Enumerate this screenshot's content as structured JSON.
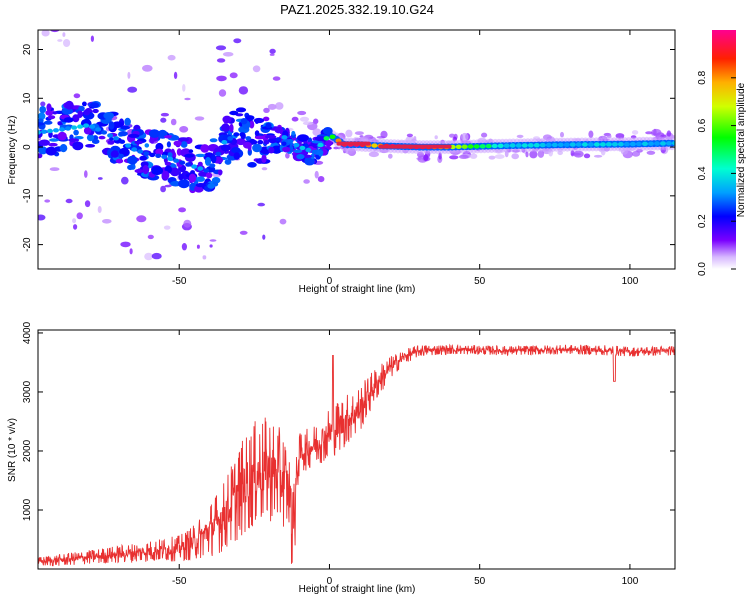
{
  "title": "PAZ1.2025.332.19.10.G24",
  "colors": {
    "snr_line": "#e83030",
    "spectral_ridge": "#e0204a",
    "background": "#ffffff"
  },
  "chart_data": [
    {
      "type": "heatmap",
      "name": "spectrogram",
      "xlabel": "Height of straight line (km)",
      "ylabel": "Frequency (Hz)",
      "xlim": [
        -97,
        115
      ],
      "ylim": [
        -25,
        24
      ],
      "xticks": [
        -50,
        0,
        50,
        100
      ],
      "yticks": [
        -20,
        -10,
        0,
        10,
        20
      ],
      "colorbar": {
        "label": "Normalized spectral amplitude",
        "range": [
          0.0,
          1.0
        ],
        "ticks": [
          "0.0",
          "0.2",
          "0.4",
          "0.6",
          "0.8"
        ],
        "colormap": "rainbow"
      },
      "ridge": {
        "description": "dominant frequency vs height",
        "x": [
          -97,
          -90,
          -85,
          -80,
          -75,
          -70,
          -65,
          -60,
          -55,
          -50,
          -45,
          -40,
          -35,
          -30,
          -25,
          -20,
          -15,
          -10,
          -5,
          0,
          5,
          10,
          15,
          20,
          30,
          40,
          60,
          80,
          100,
          115
        ],
        "y": [
          3,
          3.5,
          4,
          4.5,
          3,
          1.5,
          -0.5,
          -1.5,
          -2,
          -3,
          -4,
          -5,
          1,
          3,
          1,
          1,
          2,
          0,
          -1,
          2.5,
          0.5,
          0.5,
          0.3,
          0.2,
          0,
          0,
          0.3,
          0.5,
          0.6,
          0.8
        ],
        "amplitude": [
          0.35,
          0.3,
          0.35,
          0.3,
          0.3,
          0.25,
          0.3,
          0.25,
          0.3,
          0.25,
          0.3,
          0.25,
          0.3,
          0.25,
          0.25,
          0.2,
          0.3,
          0.35,
          0.3,
          0.5,
          0.95,
          0.95,
          0.7,
          0.95,
          0.95,
          0.7,
          0.35,
          0.35,
          0.35,
          0.35
        ]
      }
    },
    {
      "type": "line",
      "name": "snr",
      "xlabel": "Height of straight line (km)",
      "ylabel": "SNR (10 * v/v)",
      "xlim": [
        -97,
        115
      ],
      "ylim": [
        0,
        4050
      ],
      "xticks": [
        -50,
        0,
        50,
        100
      ],
      "yticks": [
        1000,
        2000,
        3000,
        4000
      ],
      "series": [
        {
          "name": "SNR",
          "x": [
            -97,
            -90,
            -80,
            -70,
            -60,
            -50,
            -45,
            -40,
            -35,
            -30,
            -25,
            -20,
            -15,
            -12,
            -11,
            -10,
            -5,
            0,
            5,
            10,
            15,
            20,
            25,
            30,
            40,
            60,
            80,
            95,
            100,
            115
          ],
          "y": [
            120,
            150,
            200,
            250,
            300,
            350,
            450,
            650,
            900,
            1300,
            1600,
            1700,
            1500,
            1100,
            1500,
            1950,
            2100,
            2300,
            2500,
            2700,
            3100,
            3400,
            3600,
            3700,
            3720,
            3700,
            3720,
            3700,
            3680,
            3700
          ],
          "spread": [
            80,
            100,
            120,
            150,
            180,
            220,
            300,
            450,
            600,
            800,
            900,
            900,
            800,
            600,
            400,
            350,
            350,
            450,
            450,
            400,
            300,
            200,
            120,
            100,
            80,
            80,
            80,
            90,
            80,
            80
          ]
        }
      ]
    }
  ]
}
